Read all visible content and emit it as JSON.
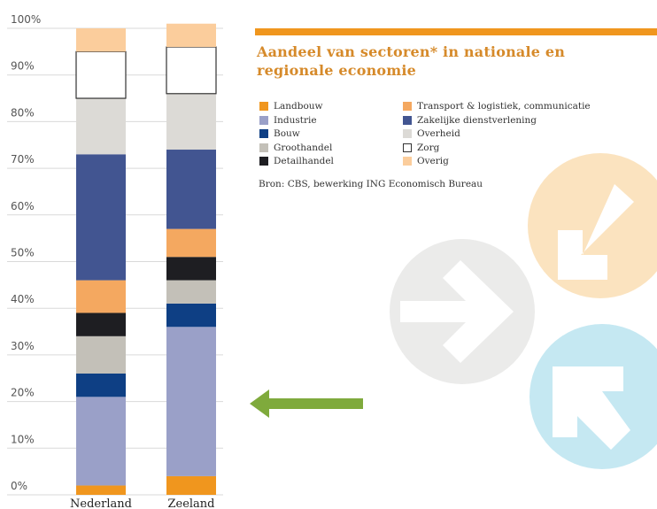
{
  "header": {
    "title_line1": "Aandeel van sectoren* in nationale en",
    "title_line2": "regionale economie",
    "source": "Bron: CBS, bewerking ING Economisch Bureau"
  },
  "colors": {
    "accent_orange": "#f0961e",
    "title_color": "#d68a2a",
    "green_arrow": "#7faa3c",
    "logo_orange": "#fbe3bf",
    "logo_grey": "#ebebea",
    "logo_blue": "#c5e8f2"
  },
  "icons": [
    "arrow-left-icon",
    "arrow-right-logo-icon",
    "arrow-down-left-logo-icon",
    "arrow-up-left-logo-icon"
  ],
  "chart_data": {
    "type": "bar",
    "stacked": true,
    "categories": [
      "Nederland",
      "Zeeland"
    ],
    "yticks": [
      "0%",
      "10%",
      "20%",
      "30%",
      "40%",
      "50%",
      "60%",
      "70%",
      "80%",
      "90%",
      "100%"
    ],
    "ylim": [
      0,
      100
    ],
    "grid": true,
    "legend_position": "right",
    "series": [
      {
        "name": "Landbouw",
        "color": "#f0961e",
        "values": [
          2,
          4
        ]
      },
      {
        "name": "Industrie",
        "color": "#9aa0c8",
        "values": [
          19,
          32
        ]
      },
      {
        "name": "Bouw",
        "color": "#0e3f84",
        "values": [
          5,
          5
        ]
      },
      {
        "name": "Groothandel",
        "color": "#c3c0b8",
        "values": [
          8,
          5
        ]
      },
      {
        "name": "Detailhandel",
        "color": "#1e1e22",
        "values": [
          5,
          5
        ]
      },
      {
        "name": "Transport & logistiek, communicatie",
        "color": "#f4a860",
        "values": [
          7,
          6
        ]
      },
      {
        "name": "Zakelijke dienstverlening",
        "color": "#425591",
        "values": [
          27,
          17
        ]
      },
      {
        "name": "Overheid",
        "color": "#dcdad6",
        "values": [
          12,
          12
        ]
      },
      {
        "name": "Zorg",
        "color": "#ffffff",
        "values": [
          10,
          10
        ]
      },
      {
        "name": "Overig",
        "color": "#fbcd9c",
        "values": [
          5,
          5
        ]
      }
    ]
  }
}
